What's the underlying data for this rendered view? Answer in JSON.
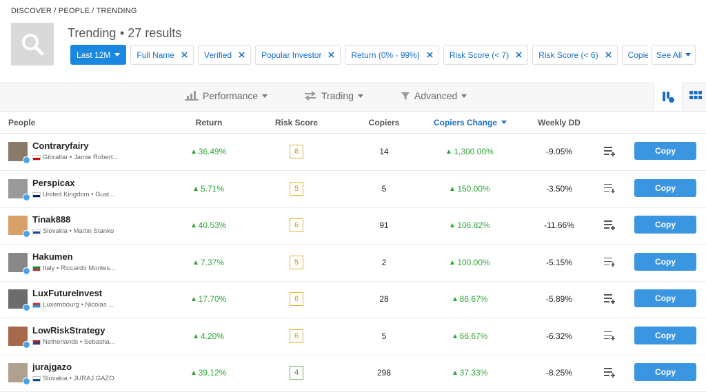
{
  "breadcrumb": "DISCOVER / PEOPLE / TRENDING",
  "header": {
    "title": "Trending",
    "results": "• 27 results"
  },
  "filters": [
    "Last 12M",
    "Full Name",
    "Verified",
    "Popular Investor",
    "Return (0% - 99%)",
    "Risk Score (< 7)",
    "Risk Score (< 6)",
    "Copiers"
  ],
  "see_all": "See All",
  "tabs": [
    "Performance",
    "Trading",
    "Advanced"
  ],
  "table": {
    "columns": [
      "People",
      "Return",
      "Risk Score",
      "Copiers",
      "Copiers Change",
      "Weekly DD"
    ],
    "copy_label": "Copy",
    "rows": [
      {
        "username": "Contraryfairy",
        "details": "Gibraltar • Jamie Robert...",
        "return": "36.49%",
        "risk": 6,
        "copiers": 14,
        "change": "1,300.00%",
        "weekly_dd": "-9.05%"
      },
      {
        "username": "Perspicax",
        "details": "United Kingdom • Gust...",
        "return": "5.71%",
        "risk": 5,
        "copiers": 5,
        "change": "150.00%",
        "weekly_dd": "-3.50%"
      },
      {
        "username": "Tinak888",
        "details": "Slovakia • Martin Stanko",
        "return": "40.53%",
        "risk": 6,
        "copiers": 91,
        "change": "106.82%",
        "weekly_dd": "-11.66%"
      },
      {
        "username": "Hakumen",
        "details": "Italy • Riccardo Montes...",
        "return": "7.37%",
        "risk": 5,
        "copiers": 2,
        "change": "100.00%",
        "weekly_dd": "-5.15%"
      },
      {
        "username": "LuxFutureInvest",
        "details": "Luxembourg • Nicolas ...",
        "return": "17.70%",
        "risk": 6,
        "copiers": 28,
        "change": "86.67%",
        "weekly_dd": "-5.89%"
      },
      {
        "username": "LowRiskStrategy",
        "details": "Netherlands • Sebastia...",
        "return": "4.20%",
        "risk": 6,
        "copiers": 5,
        "change": "66.67%",
        "weekly_dd": "-6.32%"
      },
      {
        "username": "jurajgazo",
        "details": "Slovakia • JURAJ GAZO",
        "return": "39.12%",
        "risk": 4,
        "copiers": 298,
        "change": "37.33%",
        "weekly_dd": "-8.25%"
      }
    ]
  }
}
